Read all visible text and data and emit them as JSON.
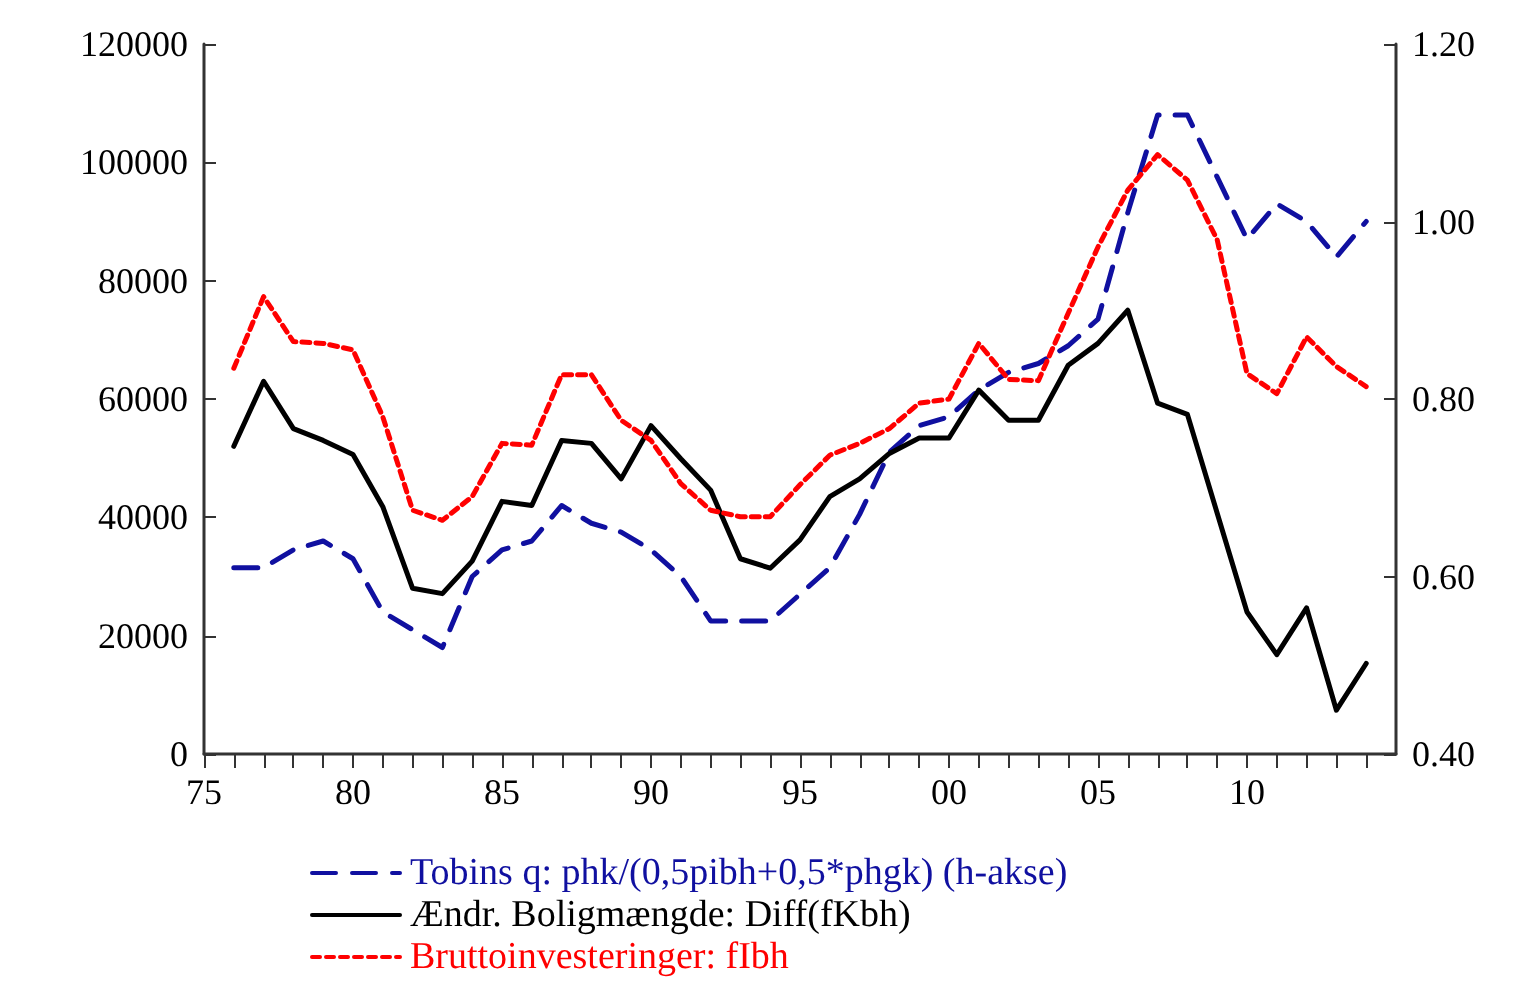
{
  "chart_data": {
    "type": "line",
    "x": [
      1976,
      1977,
      1978,
      1979,
      1980,
      1981,
      1982,
      1983,
      1984,
      1985,
      1986,
      1987,
      1988,
      1989,
      1990,
      1991,
      1992,
      1993,
      1994,
      1995,
      1996,
      1997,
      1998,
      1999,
      2000,
      2001,
      2002,
      2003,
      2004,
      2005,
      2006,
      2007,
      2008,
      2009,
      2010,
      2011,
      2012,
      2013,
      2014
    ],
    "series": [
      {
        "name": "Tobins q: phk/(0,5pibh+0,5*phgk) (h-akse)",
        "color": "#1010a0",
        "axis": "y2",
        "line_style": "dashed",
        "values": [
          0.61,
          0.61,
          0.63,
          0.64,
          0.62,
          0.56,
          0.54,
          0.52,
          0.6,
          0.63,
          0.64,
          0.68,
          0.66,
          0.65,
          0.63,
          0.6,
          0.55,
          0.55,
          0.55,
          0.58,
          0.61,
          0.67,
          0.74,
          0.77,
          0.78,
          0.81,
          0.83,
          0.84,
          0.86,
          0.89,
          1.01,
          1.12,
          1.12,
          1.05,
          0.98,
          1.02,
          1.0,
          0.96,
          1.0
        ]
      },
      {
        "name": "Ændr. Boligmængde: Diff(fKbh)",
        "color": "#000000",
        "line_style": "solid",
        "values": [
          52000,
          63000,
          55000,
          53000,
          50600,
          41800,
          28000,
          27100,
          32600,
          42700,
          42000,
          53000,
          52500,
          46500,
          55500,
          49900,
          44600,
          33000,
          31400,
          36200,
          43500,
          46500,
          50800,
          53400,
          53400,
          61500,
          56400,
          56400,
          65700,
          69400,
          75000,
          59300,
          57400,
          40700,
          24000,
          16800,
          24700,
          7400,
          15300
        ]
      },
      {
        "name": "Bruttoinvesteringer: fIbh",
        "color": "#ff0000",
        "line_style": "dotted",
        "values": [
          65200,
          77300,
          69700,
          69400,
          68300,
          57000,
          41200,
          39500,
          43500,
          52500,
          52200,
          64100,
          64100,
          56400,
          53000,
          45700,
          41200,
          40100,
          40100,
          45500,
          50500,
          52500,
          55000,
          59300,
          60000,
          69400,
          63300,
          63100,
          74500,
          85700,
          95300,
          101300,
          97000,
          86900,
          64300,
          60900,
          70500,
          65500,
          62100
        ]
      }
    ],
    "xlim": [
      1975,
      2015
    ],
    "xticks": [
      {
        "value": 1975,
        "label": "75"
      },
      {
        "value": 1976,
        "label": null
      },
      {
        "value": 1977,
        "label": null
      },
      {
        "value": 1978,
        "label": null
      },
      {
        "value": 1979,
        "label": null
      },
      {
        "value": 1980,
        "label": "80"
      },
      {
        "value": 1981,
        "label": null
      },
      {
        "value": 1982,
        "label": null
      },
      {
        "value": 1983,
        "label": null
      },
      {
        "value": 1984,
        "label": null
      },
      {
        "value": 1985,
        "label": "85"
      },
      {
        "value": 1986,
        "label": null
      },
      {
        "value": 1987,
        "label": null
      },
      {
        "value": 1988,
        "label": null
      },
      {
        "value": 1989,
        "label": null
      },
      {
        "value": 1990,
        "label": "90"
      },
      {
        "value": 1991,
        "label": null
      },
      {
        "value": 1992,
        "label": null
      },
      {
        "value": 1993,
        "label": null
      },
      {
        "value": 1994,
        "label": null
      },
      {
        "value": 1995,
        "label": "95"
      },
      {
        "value": 1996,
        "label": null
      },
      {
        "value": 1997,
        "label": null
      },
      {
        "value": 1998,
        "label": null
      },
      {
        "value": 1999,
        "label": null
      },
      {
        "value": 2000,
        "label": "00"
      },
      {
        "value": 2001,
        "label": null
      },
      {
        "value": 2002,
        "label": null
      },
      {
        "value": 2003,
        "label": null
      },
      {
        "value": 2004,
        "label": null
      },
      {
        "value": 2005,
        "label": "05"
      },
      {
        "value": 2006,
        "label": null
      },
      {
        "value": 2007,
        "label": null
      },
      {
        "value": 2008,
        "label": null
      },
      {
        "value": 2009,
        "label": null
      },
      {
        "value": 2010,
        "label": "10"
      },
      {
        "value": 2011,
        "label": null
      },
      {
        "value": 2012,
        "label": null
      },
      {
        "value": 2013,
        "label": null
      },
      {
        "value": 2014,
        "label": null
      }
    ],
    "ylim": [
      0,
      120000
    ],
    "yticks": [
      0,
      20000,
      40000,
      60000,
      80000,
      100000,
      120000
    ],
    "y2lim": [
      0.4,
      1.2
    ],
    "y2ticks": [
      {
        "value": 0.4,
        "label": "0.40"
      },
      {
        "value": 0.6,
        "label": "0.60"
      },
      {
        "value": 0.8,
        "label": "0.80"
      },
      {
        "value": 1.0,
        "label": "1.00"
      },
      {
        "value": 1.2,
        "label": "1.20"
      }
    ],
    "grid": false,
    "legend": "bottom",
    "marker": "none"
  }
}
